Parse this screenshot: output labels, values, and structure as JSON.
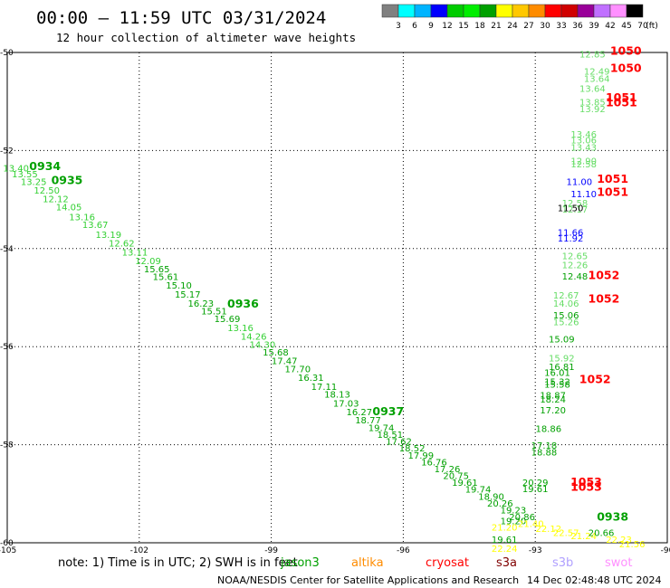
{
  "header": {
    "title": "00:00 – 11:59 UTC 03/31/2024",
    "subtitle": "12 hour collection of altimeter wave heights"
  },
  "colorbar": {
    "colors": [
      "#808080",
      "#00ffff",
      "#00b4ff",
      "#0000ff",
      "#00cc00",
      "#00ee00",
      "#00a000",
      "#ffff00",
      "#ffc800",
      "#ff8c00",
      "#ff0000",
      "#d00000",
      "#990099",
      "#c070ff",
      "#ff90ff",
      "#000000"
    ],
    "labels": [
      "3",
      "6",
      "9",
      "12",
      "15",
      "18",
      "21",
      "24",
      "27",
      "30",
      "33",
      "36",
      "39",
      "42",
      "45",
      "70",
      "(ft)"
    ]
  },
  "map": {
    "lon_min": -105,
    "lon_max": -90,
    "lat_min": -60,
    "lat_max": -50,
    "grid": true,
    "x_tick_labels": [
      "-105",
      "-102",
      "-99",
      "-96",
      "-93",
      "-90"
    ],
    "y_tick_labels": [
      "-50",
      "-52",
      "-54",
      "-56",
      "-58",
      "-60"
    ]
  },
  "chart_data": {
    "type": "scatter",
    "xlabel": "",
    "ylabel": "",
    "xlim": [
      -105,
      -90
    ],
    "ylim": [
      -60,
      -50
    ],
    "series": [
      {
        "color": "#00a000",
        "points": [
          {
            "lon": -104.8,
            "lat": -52.43,
            "v": "13.40",
            "c": "#33d033"
          },
          {
            "lon": -104.6,
            "lat": -52.55,
            "v": "13.55",
            "c": "#33d033"
          },
          {
            "lon": -104.4,
            "lat": -52.7,
            "v": "13.25",
            "c": "#33d033"
          },
          {
            "lon": -104.1,
            "lat": -52.88,
            "v": "12.50",
            "c": "#33d033"
          },
          {
            "lon": -103.9,
            "lat": -53.05,
            "v": "12.12",
            "c": "#33d033"
          },
          {
            "lon": -103.6,
            "lat": -53.22,
            "v": "14.05",
            "c": "#33d033"
          },
          {
            "lon": -103.3,
            "lat": -53.42,
            "v": "13.16",
            "c": "#33d033"
          },
          {
            "lon": -103.0,
            "lat": -53.58,
            "v": "13.67",
            "c": "#33d033"
          },
          {
            "lon": -102.7,
            "lat": -53.78,
            "v": "13.19",
            "c": "#33d033"
          },
          {
            "lon": -102.4,
            "lat": -53.96,
            "v": "12.62",
            "c": "#33d033"
          },
          {
            "lon": -102.1,
            "lat": -54.14,
            "v": "13.11",
            "c": "#33d033"
          },
          {
            "lon": -101.8,
            "lat": -54.32,
            "v": "12.09",
            "c": "#33d033"
          },
          {
            "lon": -101.6,
            "lat": -54.48,
            "v": "15.65",
            "c": "#00a000"
          },
          {
            "lon": -101.4,
            "lat": -54.64,
            "v": "15.61",
            "c": "#00a000"
          },
          {
            "lon": -101.1,
            "lat": -54.82,
            "v": "15.10",
            "c": "#00a000"
          },
          {
            "lon": -100.9,
            "lat": -55.0,
            "v": "15.17",
            "c": "#00a000"
          },
          {
            "lon": -100.6,
            "lat": -55.18,
            "v": "16.23",
            "c": "#00a000"
          },
          {
            "lon": -100.3,
            "lat": -55.34,
            "v": "15.51",
            "c": "#00a000"
          },
          {
            "lon": -100.0,
            "lat": -55.5,
            "v": "15.69",
            "c": "#00a000"
          },
          {
            "lon": -99.7,
            "lat": -55.68,
            "v": "13.16",
            "c": "#33d033"
          },
          {
            "lon": -99.4,
            "lat": -55.86,
            "v": "14.26",
            "c": "#33d033"
          },
          {
            "lon": -99.2,
            "lat": -56.02,
            "v": "14.30",
            "c": "#33d033"
          },
          {
            "lon": -98.9,
            "lat": -56.18,
            "v": "15.68",
            "c": "#00a000"
          },
          {
            "lon": -98.7,
            "lat": -56.36,
            "v": "17.47",
            "c": "#00a000"
          },
          {
            "lon": -98.4,
            "lat": -56.52,
            "v": "17.70",
            "c": "#00a000"
          },
          {
            "lon": -98.1,
            "lat": -56.7,
            "v": "16.31",
            "c": "#00a000"
          },
          {
            "lon": -97.8,
            "lat": -56.88,
            "v": "17.11",
            "c": "#00a000"
          },
          {
            "lon": -97.5,
            "lat": -57.04,
            "v": "18.13",
            "c": "#00a000"
          },
          {
            "lon": -97.3,
            "lat": -57.22,
            "v": "17.03",
            "c": "#00a000"
          },
          {
            "lon": -97.0,
            "lat": -57.4,
            "v": "16.27",
            "c": "#00a000"
          },
          {
            "lon": -96.8,
            "lat": -57.56,
            "v": "18.77",
            "c": "#00a000"
          },
          {
            "lon": -96.5,
            "lat": -57.72,
            "v": "19.74",
            "c": "#00a000"
          },
          {
            "lon": -96.3,
            "lat": -57.86,
            "v": "18.51",
            "c": "#00a000"
          },
          {
            "lon": -96.1,
            "lat": -58.0,
            "v": "17.62",
            "c": "#00a000"
          },
          {
            "lon": -95.8,
            "lat": -58.14,
            "v": "18.52",
            "c": "#00a000"
          },
          {
            "lon": -95.6,
            "lat": -58.28,
            "v": "17.99",
            "c": "#00a000"
          },
          {
            "lon": -95.3,
            "lat": -58.42,
            "v": "16.76",
            "c": "#00a000"
          },
          {
            "lon": -95.0,
            "lat": -58.56,
            "v": "17.26",
            "c": "#00a000"
          },
          {
            "lon": -94.8,
            "lat": -58.7,
            "v": "20.75",
            "c": "#00a000"
          },
          {
            "lon": -94.6,
            "lat": -58.84,
            "v": "19.61",
            "c": "#00a000"
          },
          {
            "lon": -94.3,
            "lat": -58.98,
            "v": "19.74",
            "c": "#00a000"
          },
          {
            "lon": -94.0,
            "lat": -59.12,
            "v": "18.90",
            "c": "#00a000"
          },
          {
            "lon": -93.8,
            "lat": -59.26,
            "v": "20.26",
            "c": "#00a000"
          },
          {
            "lon": -93.5,
            "lat": -59.4,
            "v": "19.23",
            "c": "#00a000"
          },
          {
            "lon": -93.3,
            "lat": -59.54,
            "v": "20.86",
            "c": "#00a000"
          },
          {
            "lon": -93.5,
            "lat": -59.62,
            "v": "19.20",
            "c": "#00a000"
          },
          {
            "lon": -93.7,
            "lat": -59.75,
            "v": "21.20",
            "c": "#ffff00"
          },
          {
            "lon": -93.1,
            "lat": -59.68,
            "v": "21.40",
            "c": "#ffff00"
          },
          {
            "lon": -92.7,
            "lat": -59.78,
            "v": "22.12",
            "c": "#ffff00"
          },
          {
            "lon": -92.3,
            "lat": -59.86,
            "v": "22.57",
            "c": "#ffff00"
          },
          {
            "lon": -91.9,
            "lat": -59.93,
            "v": "21.24",
            "c": "#ffff00"
          },
          {
            "lon": -91.5,
            "lat": -59.86,
            "v": "20.66",
            "c": "#00a000"
          },
          {
            "lon": -91.1,
            "lat": -60.0,
            "v": "22.23",
            "c": "#ffff00"
          },
          {
            "lon": -90.8,
            "lat": -60.09,
            "v": "21.56",
            "c": "#ffff00"
          },
          {
            "lon": -93.7,
            "lat": -60.0,
            "v": "19.61",
            "c": "#00a000"
          },
          {
            "lon": -93.7,
            "lat": -60.18,
            "v": "22.24",
            "c": "#ffff00"
          }
        ],
        "times": [
          {
            "lon": -104.5,
            "lat": -52.4,
            "t": "0934"
          },
          {
            "lon": -104.0,
            "lat": -52.68,
            "t": "0935"
          },
          {
            "lon": -100.0,
            "lat": -55.2,
            "t": "0936"
          },
          {
            "lon": -96.7,
            "lat": -57.4,
            "t": "0937"
          },
          {
            "lon": -91.6,
            "lat": -59.55,
            "t": "0938"
          }
        ]
      },
      {
        "color": "#ff0000",
        "points": [
          {
            "lon": -91.7,
            "lat": -50.1,
            "v": "12.85",
            "c": "#66dd66"
          },
          {
            "lon": -91.6,
            "lat": -50.45,
            "v": "12.49",
            "c": "#66dd66"
          },
          {
            "lon": -91.6,
            "lat": -50.6,
            "v": "13.64",
            "c": "#66dd66"
          },
          {
            "lon": -91.7,
            "lat": -50.8,
            "v": "13.64",
            "c": "#66dd66"
          },
          {
            "lon": -91.7,
            "lat": -51.08,
            "v": "13.85",
            "c": "#66dd66"
          },
          {
            "lon": -91.7,
            "lat": -51.22,
            "v": "13.92",
            "c": "#66dd66"
          },
          {
            "lon": -91.9,
            "lat": -51.73,
            "v": "13.46",
            "c": "#66dd66"
          },
          {
            "lon": -91.9,
            "lat": -51.85,
            "v": "13.06",
            "c": "#66dd66"
          },
          {
            "lon": -91.9,
            "lat": -52.0,
            "v": "13.43",
            "c": "#66dd66"
          },
          {
            "lon": -91.9,
            "lat": -52.28,
            "v": "12.90",
            "c": "#66dd66"
          },
          {
            "lon": -91.9,
            "lat": -52.34,
            "v": "12.58",
            "c": "#66dd66"
          },
          {
            "lon": -92.0,
            "lat": -52.7,
            "v": "11.00",
            "c": "#0000ff"
          },
          {
            "lon": -91.9,
            "lat": -52.95,
            "v": "11.10",
            "c": "#0000ff"
          },
          {
            "lon": -92.1,
            "lat": -53.14,
            "v": "12.58",
            "c": "#66dd66"
          },
          {
            "lon": -92.1,
            "lat": -53.27,
            "v": "12.17",
            "c": "#66dd66"
          },
          {
            "lon": -92.2,
            "lat": -53.24,
            "v": "11.50",
            "c": "#000000"
          },
          {
            "lon": -92.2,
            "lat": -53.74,
            "v": "11.66",
            "c": "#0000ff"
          },
          {
            "lon": -92.2,
            "lat": -53.86,
            "v": "11.92",
            "c": "#0000ff"
          },
          {
            "lon": -92.1,
            "lat": -54.22,
            "v": "12.65",
            "c": "#66dd66"
          },
          {
            "lon": -92.1,
            "lat": -54.4,
            "v": "12.26",
            "c": "#66dd66"
          },
          {
            "lon": -92.1,
            "lat": -54.63,
            "v": "12.48",
            "c": "#00a000"
          },
          {
            "lon": -92.3,
            "lat": -55.02,
            "v": "12.67",
            "c": "#66dd66"
          },
          {
            "lon": -92.3,
            "lat": -55.18,
            "v": "14.06",
            "c": "#66dd66"
          },
          {
            "lon": -92.3,
            "lat": -55.42,
            "v": "15.06",
            "c": "#00a000"
          },
          {
            "lon": -92.3,
            "lat": -55.56,
            "v": "15.26",
            "c": "#66dd66"
          },
          {
            "lon": -92.4,
            "lat": -55.91,
            "v": "15.09",
            "c": "#00a000"
          },
          {
            "lon": -92.4,
            "lat": -56.3,
            "v": "15.92",
            "c": "#66dd66"
          },
          {
            "lon": -92.4,
            "lat": -56.48,
            "v": "16.81",
            "c": "#00a000"
          },
          {
            "lon": -92.5,
            "lat": -56.6,
            "v": "16.01",
            "c": "#00a000"
          },
          {
            "lon": -92.5,
            "lat": -56.78,
            "v": "15.32",
            "c": "#00a000"
          },
          {
            "lon": -92.5,
            "lat": -56.84,
            "v": "15.58",
            "c": "#00a000"
          },
          {
            "lon": -92.6,
            "lat": -57.06,
            "v": "18.87",
            "c": "#00a000"
          },
          {
            "lon": -92.6,
            "lat": -57.14,
            "v": "18.24",
            "c": "#00a000"
          },
          {
            "lon": -92.6,
            "lat": -57.36,
            "v": "17.20",
            "c": "#00a000"
          },
          {
            "lon": -92.7,
            "lat": -57.74,
            "v": "18.86",
            "c": "#00a000"
          },
          {
            "lon": -92.8,
            "lat": -58.08,
            "v": "17.18",
            "c": "#00a000"
          },
          {
            "lon": -92.8,
            "lat": -58.22,
            "v": "18.88",
            "c": "#00a000"
          },
          {
            "lon": -93.0,
            "lat": -58.84,
            "v": "20.29",
            "c": "#00a000"
          },
          {
            "lon": -93.0,
            "lat": -58.97,
            "v": "19.61",
            "c": "#00a000"
          }
        ],
        "times": [
          {
            "lon": -91.3,
            "lat": -50.05,
            "t": "1050"
          },
          {
            "lon": -91.3,
            "lat": -50.4,
            "t": "1050"
          },
          {
            "lon": -91.4,
            "lat": -51.0,
            "t": "1051"
          },
          {
            "lon": -91.4,
            "lat": -51.1,
            "t": "1051"
          },
          {
            "lon": -91.6,
            "lat": -52.66,
            "t": "1051"
          },
          {
            "lon": -91.6,
            "lat": -52.92,
            "t": "1051"
          },
          {
            "lon": -91.8,
            "lat": -54.62,
            "t": "1052"
          },
          {
            "lon": -91.8,
            "lat": -55.1,
            "t": "1052"
          },
          {
            "lon": -92.0,
            "lat": -56.74,
            "t": "1052"
          },
          {
            "lon": -92.2,
            "lat": -58.84,
            "t": "1053"
          },
          {
            "lon": -92.2,
            "lat": -58.94,
            "t": "1053"
          }
        ]
      }
    ]
  },
  "footer": {
    "note": "note:  1) Time is in UTC; 2) SWH is in feet",
    "satellites": [
      {
        "name": "jason3",
        "color": "#00a000"
      },
      {
        "name": "altika",
        "color": "#ff8c00"
      },
      {
        "name": "cryosat",
        "color": "#ff0000"
      },
      {
        "name": "s3a",
        "color": "#800000"
      },
      {
        "name": "s3b",
        "color": "#b0a0ff"
      },
      {
        "name": "swot",
        "color": "#ff90ff"
      }
    ],
    "credit": "NOAA/NESDIS Center for Satellite Applications and Research",
    "timestamp": "14 Dec 02:48:48 UTC 2024"
  }
}
